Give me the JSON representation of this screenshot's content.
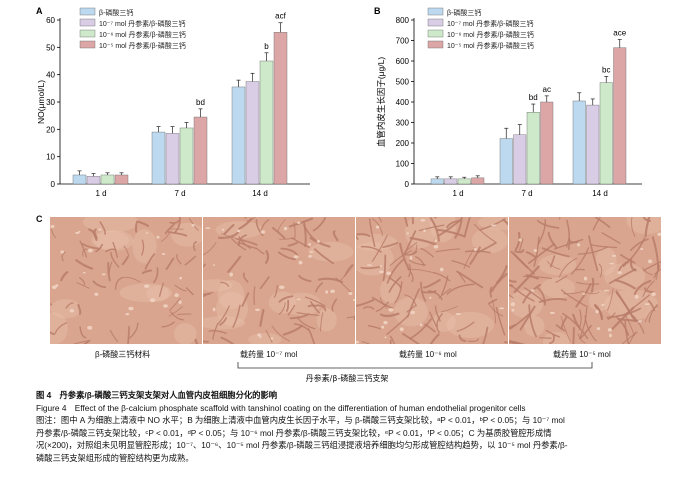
{
  "legend": {
    "items": [
      {
        "label": "β-磷酸三钙",
        "color": "#bcd9ef"
      },
      {
        "label": "10⁻⁷ mol 丹参素/β-磷酸三钙",
        "color": "#d9cde6"
      },
      {
        "label": "10⁻⁶ mol 丹参素/β-磷酸三钙",
        "color": "#cde9c9"
      },
      {
        "label": "10⁻⁵ mol 丹参素/β-磷酸三钙",
        "color": "#dca6a6"
      }
    ]
  },
  "chart_data": [
    {
      "panel": "A",
      "type": "bar",
      "categories": [
        "1 d",
        "7 d",
        "14 d"
      ],
      "ylabel": "NO(μmol/L)",
      "ylim": [
        0,
        60
      ],
      "yticks": [
        0,
        10,
        20,
        30,
        40,
        50,
        60
      ],
      "series": [
        {
          "name": "β-磷酸三钙",
          "values": [
            3.3,
            19,
            35.5
          ],
          "errors": [
            1.5,
            2,
            2.5
          ]
        },
        {
          "name": "10⁻⁷ mol 丹参素/β-磷酸三钙",
          "values": [
            2.8,
            18.5,
            37.5
          ],
          "errors": [
            1,
            2.5,
            3
          ]
        },
        {
          "name": "10⁻⁶ mol 丹参素/β-磷酸三钙",
          "values": [
            3.3,
            20.5,
            45
          ],
          "errors": [
            0.8,
            2,
            3
          ]
        },
        {
          "name": "10⁻⁵ mol 丹参素/β-磷酸三钙",
          "values": [
            3.3,
            24.5,
            55.5
          ],
          "errors": [
            0.8,
            3,
            3.5
          ]
        }
      ],
      "annotations": [
        {
          "category": "7 d",
          "series": 3,
          "text": "bd"
        },
        {
          "category": "14 d",
          "series": 2,
          "text": "b"
        },
        {
          "category": "14 d",
          "series": 3,
          "text": "acf"
        }
      ]
    },
    {
      "panel": "B",
      "type": "bar",
      "categories": [
        "1 d",
        "7 d",
        "14 d"
      ],
      "ylabel": "血管内皮生长因子(μg/L)",
      "ylim": [
        0,
        800
      ],
      "yticks": [
        0,
        100,
        200,
        300,
        400,
        500,
        600,
        700,
        800
      ],
      "series": [
        {
          "name": "β-磷酸三钙",
          "values": [
            25,
            222,
            405
          ],
          "errors": [
            10,
            50,
            40
          ]
        },
        {
          "name": "10⁻⁷ mol 丹参素/β-磷酸三钙",
          "values": [
            25,
            240,
            385
          ],
          "errors": [
            10,
            50,
            30
          ]
        },
        {
          "name": "10⁻⁶ mol 丹参素/β-磷酸三钙",
          "values": [
            25,
            350,
            495
          ],
          "errors": [
            8,
            40,
            30
          ]
        },
        {
          "name": "10⁻⁵ mol 丹参素/β-磷酸三钙",
          "values": [
            30,
            400,
            665
          ],
          "errors": [
            10,
            30,
            40
          ]
        }
      ],
      "annotations": [
        {
          "category": "7 d",
          "series": 2,
          "text": "bd"
        },
        {
          "category": "7 d",
          "series": 3,
          "text": "ac"
        },
        {
          "category": "14 d",
          "series": 2,
          "text": "bc"
        },
        {
          "category": "14 d",
          "series": 3,
          "text": "ace"
        }
      ]
    }
  ],
  "panel_labels": {
    "a": "A",
    "b": "B",
    "c": "C"
  },
  "micrographs": {
    "captions": [
      "β-磷酸三钙材料",
      "载药量 10⁻⁷ mol",
      "载药量 10⁻⁶ mol",
      "载药量 10⁻⁵ mol"
    ],
    "group_label": "丹参素/β-磷酸三钙支架",
    "colors": {
      "bg": "#d9a58e",
      "cell": "#b97d68",
      "light": "#ecc6b3"
    }
  },
  "caption": {
    "title_cn": "图 4　丹参素/β-磷酸三钙支架支架对人血管内皮祖细胞分化的影响",
    "title_en": "Figure 4　Effect of the β-calcium phosphate scaffold with tanshinol coating on the differentiation of human endothelial progenitor cells",
    "lines": [
      "图注：图中 A 为细胞上清液中 NO 水平；B 为细胞上清液中血管内皮生长因子水平，与 β-磷酸三钙支架比较，ᵃP < 0.01，ᵇP < 0.05；与 10⁻⁷ mol",
      "丹参素/β-磷酸三钙支架比较，ᶜP < 0.01，ᵈP < 0.05；与 10⁻⁶ mol 丹参素/β-磷酸三钙支架比较，ᵉP < 0.01，ᶠP < 0.05；C 为基质胶管腔形成情",
      "况(×200)，对照组未见明显管腔形成；10⁻⁷、10⁻⁶、10⁻⁵ mol 丹参素/β-磷酸三钙组浸提液培养细胞均匀形成管腔结构趋势，以 10⁻⁵ mol 丹参素/β-",
      "磷酸三钙支架组形成的管腔结构更为成熟。"
    ]
  }
}
